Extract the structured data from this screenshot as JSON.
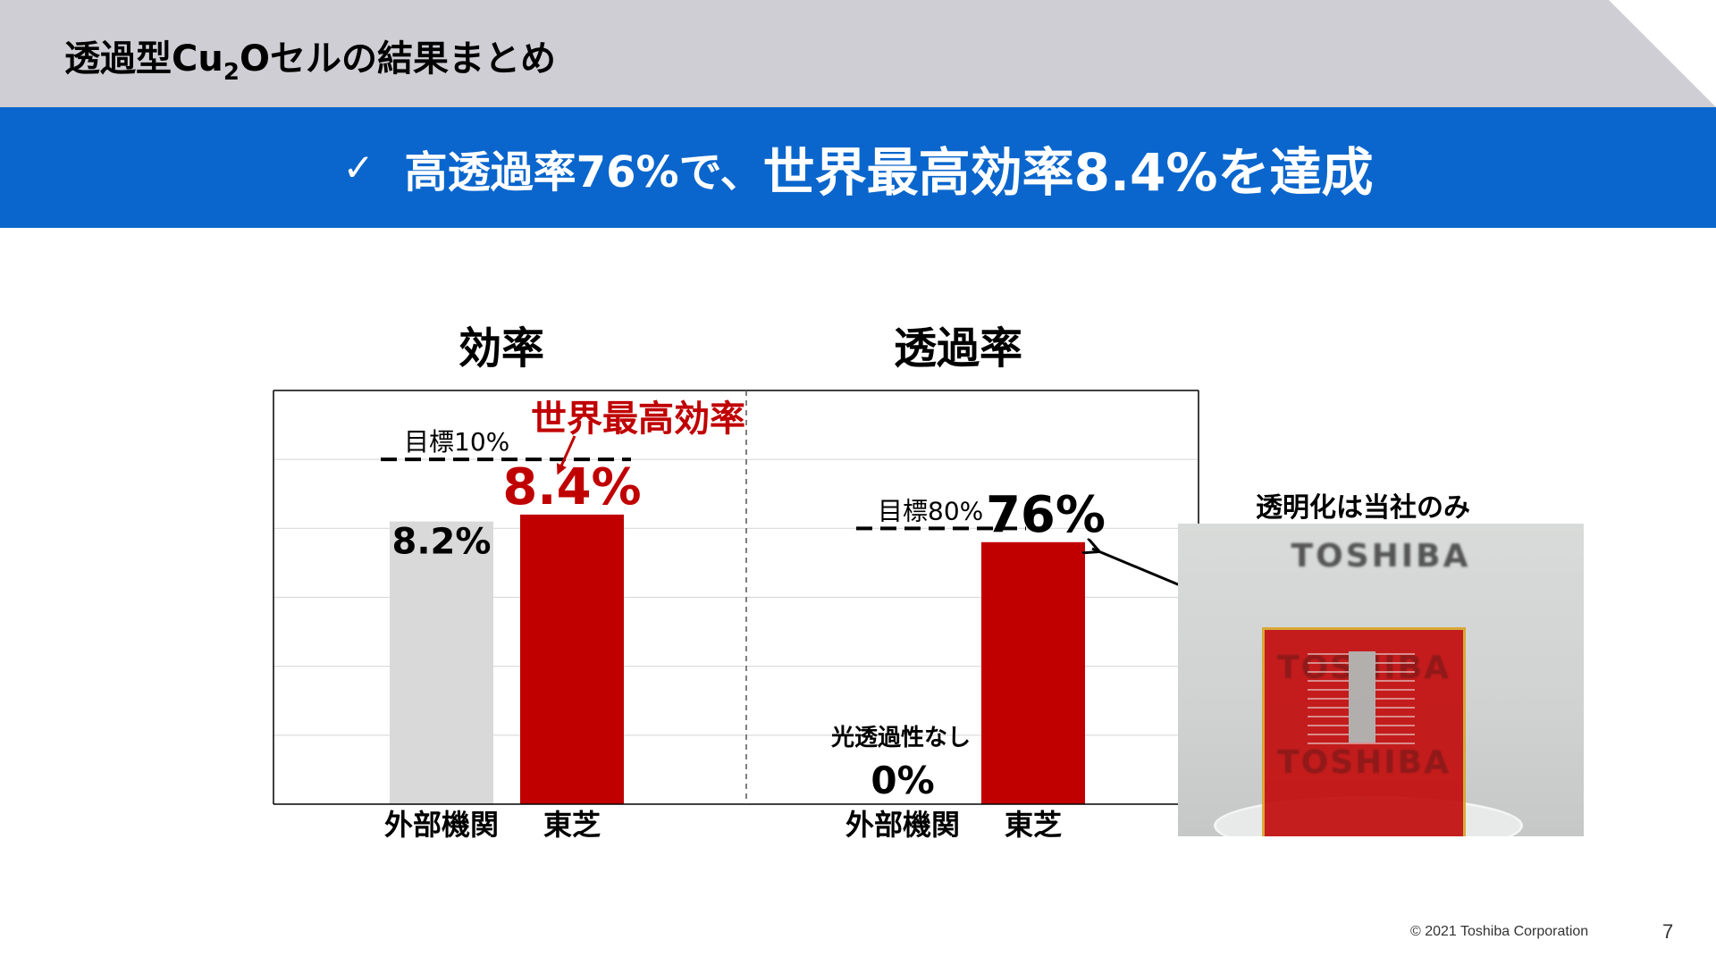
{
  "header": {
    "title_pre": "透過型Cu",
    "title_sub": "2",
    "title_post": "Oセルの結果まとめ"
  },
  "banner": {
    "check": "✓",
    "text_a": "高透過率76%で、",
    "text_b": "世界最高効率8.4%を達成"
  },
  "chart_data": [
    {
      "type": "bar",
      "title": "効率",
      "categories": [
        "外部機関",
        "東芝"
      ],
      "values": [
        8.2,
        8.4
      ],
      "value_labels": [
        "8.2%",
        "8.4%"
      ],
      "bar_colors": [
        "#d9d9d9",
        "#c00000"
      ],
      "ylim": [
        0,
        12
      ],
      "grid": true,
      "target": {
        "value": 10,
        "label": "目標10%"
      },
      "annotation": "世界最高効率"
    },
    {
      "type": "bar",
      "title": "透過率",
      "categories": [
        "外部機関",
        "東芝"
      ],
      "values": [
        0,
        76
      ],
      "value_labels": [
        "0%",
        "76%"
      ],
      "bar_colors": [
        "#d9d9d9",
        "#c00000"
      ],
      "ylim": [
        0,
        120
      ],
      "grid": true,
      "target": {
        "value": 80,
        "label": "目標80%"
      },
      "annotation": "光透過性なし"
    }
  ],
  "photo": {
    "caption": "透明化は当社のみ",
    "logo": "TOSHIBA"
  },
  "footer": {
    "copyright": "© 2021 Toshiba Corporation",
    "page_number": "7"
  }
}
